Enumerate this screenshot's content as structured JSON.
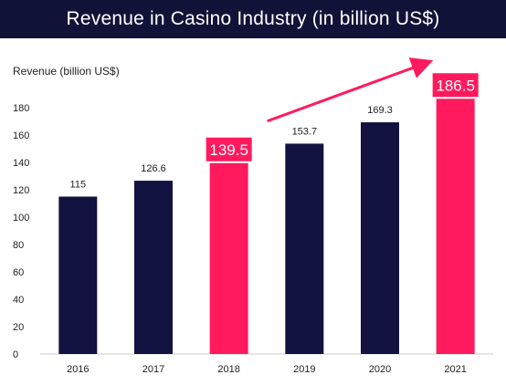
{
  "header": {
    "title": "Revenue in Casino Industry  (in billion US$)"
  },
  "chart_data": {
    "type": "bar",
    "title": "Revenue in Casino Industry  (in billion US$)",
    "ylabel": "Revenue  (billion US$)",
    "xlabel": "",
    "categories": [
      "2016",
      "2017",
      "2018",
      "2019",
      "2020",
      "2021"
    ],
    "values": [
      115,
      126.6,
      139.5,
      153.7,
      169.3,
      186.5
    ],
    "value_labels": [
      "115",
      "126.6",
      "139.5",
      "153.7",
      "169.3",
      "186.5"
    ],
    "highlighted": [
      false,
      false,
      true,
      false,
      false,
      true
    ],
    "ylim": [
      0,
      180
    ],
    "yticks": [
      0,
      20,
      40,
      60,
      80,
      100,
      120,
      140,
      160,
      180
    ],
    "ytick_labels": [
      "0",
      "20",
      "40",
      "60",
      "80",
      "100",
      "120",
      "140",
      "160",
      "180"
    ],
    "grid": false,
    "annotation": "arrow from 2018 to 2021",
    "colors": {
      "bar": "#121240",
      "highlight": "#ff1a5e",
      "arrow": "#ff1a5e",
      "axis": "#cccccc"
    }
  }
}
